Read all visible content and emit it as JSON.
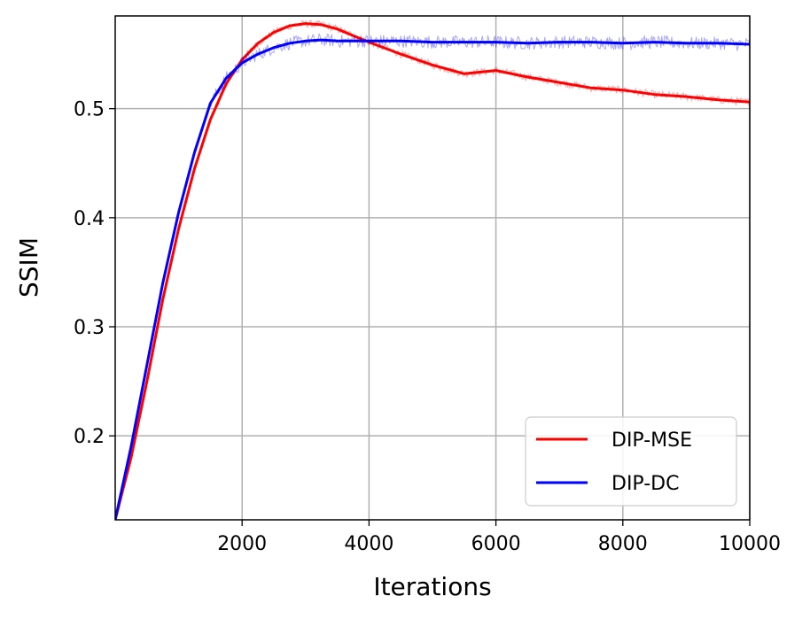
{
  "chart_data": {
    "type": "line",
    "title": "",
    "xlabel": "Iterations",
    "ylabel": "SSIM",
    "xlim": [
      0,
      10000
    ],
    "ylim": [
      0.123,
      0.585
    ],
    "grid": true,
    "legend_position": "bottom-right",
    "x_ticks": [
      2000,
      4000,
      6000,
      8000,
      10000
    ],
    "x_tick_labels": [
      "2000",
      "4000",
      "6000",
      "8000",
      "10000"
    ],
    "y_ticks": [
      0.2,
      0.3,
      0.4,
      0.5
    ],
    "y_tick_labels": [
      "0.2",
      "0.3",
      "0.4",
      "0.5"
    ],
    "series": [
      {
        "name": "DIP-MSE",
        "color": "#ff0000",
        "x": [
          0,
          250,
          500,
          750,
          1000,
          1250,
          1500,
          1750,
          2000,
          2250,
          2500,
          2750,
          3000,
          3250,
          3500,
          3750,
          4000,
          4500,
          5000,
          5500,
          6000,
          6500,
          7000,
          7500,
          8000,
          8500,
          9000,
          9500,
          10000
        ],
        "y": [
          0.123,
          0.18,
          0.25,
          0.325,
          0.39,
          0.445,
          0.49,
          0.523,
          0.545,
          0.56,
          0.57,
          0.576,
          0.578,
          0.577,
          0.573,
          0.567,
          0.561,
          0.55,
          0.54,
          0.532,
          0.535,
          0.529,
          0.524,
          0.519,
          0.517,
          0.513,
          0.511,
          0.508,
          0.506
        ]
      },
      {
        "name": "DIP-DC",
        "color": "#0000ff",
        "x": [
          0,
          250,
          500,
          750,
          1000,
          1250,
          1500,
          1750,
          2000,
          2250,
          2500,
          2750,
          3000,
          3250,
          3500,
          4000,
          4500,
          5000,
          5500,
          6000,
          6500,
          7000,
          7500,
          8000,
          8500,
          9000,
          9500,
          10000
        ],
        "y": [
          0.123,
          0.19,
          0.265,
          0.34,
          0.405,
          0.46,
          0.505,
          0.528,
          0.542,
          0.55,
          0.556,
          0.56,
          0.562,
          0.563,
          0.562,
          0.562,
          0.562,
          0.561,
          0.561,
          0.561,
          0.56,
          0.561,
          0.561,
          0.56,
          0.561,
          0.56,
          0.56,
          0.559
        ]
      }
    ]
  }
}
